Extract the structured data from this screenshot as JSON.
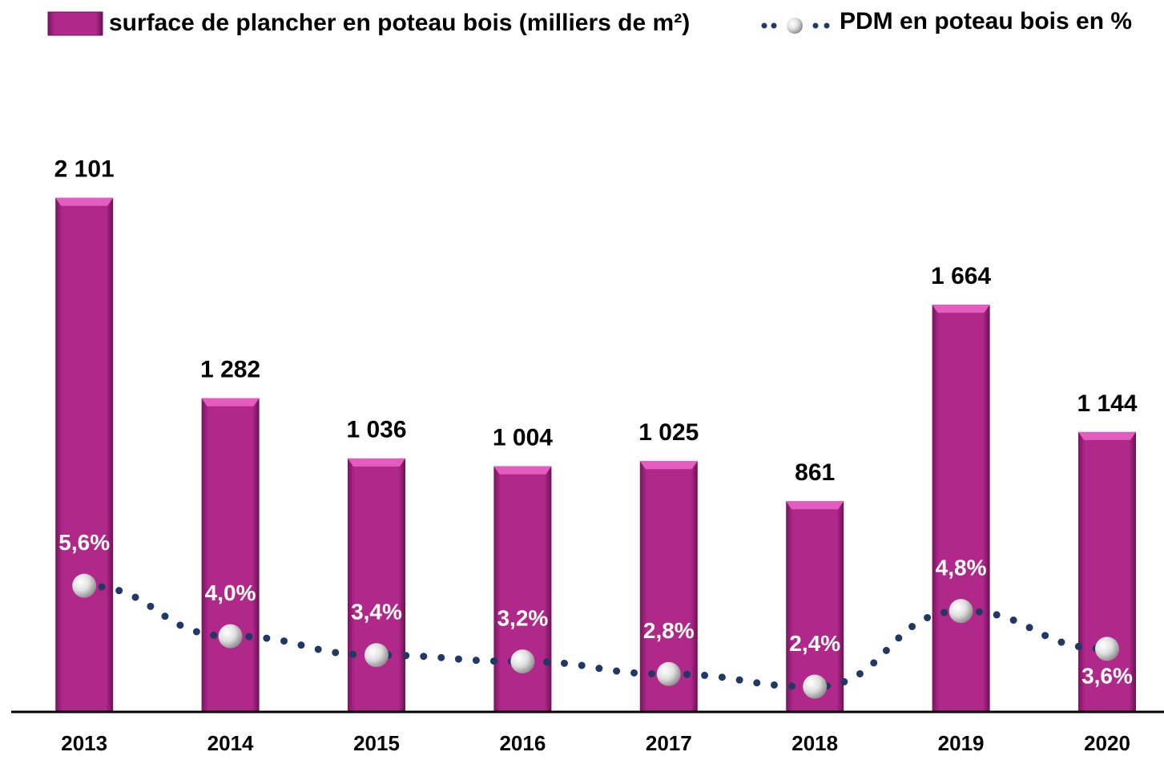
{
  "chart_data": {
    "type": "bar-line",
    "categories": [
      "2013",
      "2014",
      "2015",
      "2016",
      "2017",
      "2018",
      "2019",
      "2020"
    ],
    "series": [
      {
        "name": "surface de plancher en poteau bois (milliers de m²)",
        "color": "#b0288a",
        "values": [
          2101,
          1282,
          1036,
          1004,
          1025,
          861,
          1664,
          1144
        ],
        "value_labels": [
          "2 101",
          "1 282",
          "1 036",
          "1 004",
          "1 025",
          "861",
          "1 664",
          "1 144"
        ]
      },
      {
        "name": "PDM en poteau bois en %",
        "color": "#1f3864",
        "axis": "y2",
        "type": "line",
        "values": [
          5.6,
          4.0,
          3.4,
          3.2,
          2.8,
          2.4,
          4.8,
          3.6
        ],
        "value_labels": [
          "5,6%",
          "4,0%",
          "3,4%",
          "3,2%",
          "2,8%",
          "2,4%",
          "4,8%",
          "3,6%"
        ]
      }
    ],
    "ylim": [
      0,
      2500
    ],
    "y2lim": [
      1.6,
      21
    ],
    "legend": "top"
  }
}
